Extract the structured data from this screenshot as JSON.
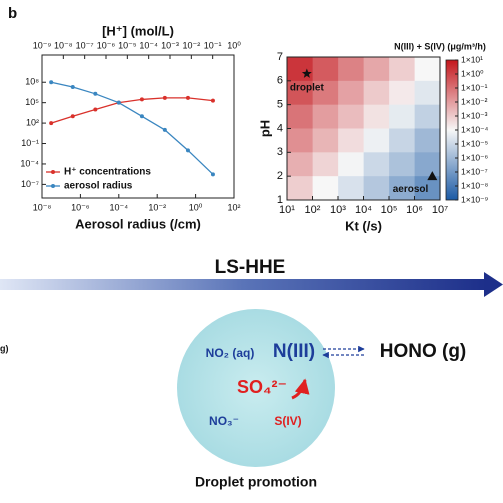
{
  "panel_label": "b",
  "chart_data": [
    {
      "type": "line",
      "xlabel": "Aerosol radius (/cm)",
      "x2label": "[H⁺] (mol/L)",
      "x": [
        3e-08,
        4e-07,
        6e-06,
        0.0001,
        0.0016,
        0.025,
        0.4,
        8
      ],
      "xlim": [
        1e-08,
        100
      ],
      "xticks": [
        {
          "value": 1e-08,
          "label": "10⁻⁸"
        },
        {
          "value": 1e-06,
          "label": "10⁻⁶"
        },
        {
          "value": 0.0001,
          "label": "10⁻⁴"
        },
        {
          "value": 0.01,
          "label": "10⁻²"
        },
        {
          "value": 1,
          "label": "10⁰"
        },
        {
          "value": 100,
          "label": "10²"
        }
      ],
      "x2lim": [
        1e-09,
        1
      ],
      "x2ticks": [
        {
          "value": 1e-09,
          "label": "10⁻⁹"
        },
        {
          "value": 1e-08,
          "label": "10⁻⁸"
        },
        {
          "value": 1e-07,
          "label": "10⁻⁷"
        },
        {
          "value": 1e-06,
          "label": "10⁻⁶"
        },
        {
          "value": 1e-05,
          "label": "10⁻⁵"
        },
        {
          "value": 0.0001,
          "label": "10⁻⁴"
        },
        {
          "value": 0.001,
          "label": "10⁻³"
        },
        {
          "value": 0.01,
          "label": "10⁻²"
        },
        {
          "value": 0.1,
          "label": "10⁻¹"
        },
        {
          "value": 1,
          "label": "10⁰"
        }
      ],
      "ylim": [
        1e-09,
        1000000000000.0
      ],
      "yticks": [
        {
          "value": 1e-07,
          "label": "10⁻⁷"
        },
        {
          "value": 0.0001,
          "label": "10⁻⁴"
        },
        {
          "value": 0.1,
          "label": "10⁻¹"
        },
        {
          "value": 100,
          "label": "10²"
        },
        {
          "value": 100000,
          "label": "10⁵"
        },
        {
          "value": 100000000,
          "label": "10⁸"
        }
      ],
      "log_x": true,
      "log_y": true,
      "legend": "lower left",
      "series": [
        {
          "name": "H⁺ concentrations",
          "color": "#d9312b",
          "values": [
            100,
            1000,
            10000,
            100000,
            300000,
            500000,
            500000,
            200000
          ]
        },
        {
          "name": "aerosol radius",
          "color": "#3a86c0",
          "values": [
            100000000,
            20000000,
            2000000,
            100000,
            1000,
            10,
            0.01,
            3e-06
          ]
        }
      ]
    },
    {
      "type": "heatmap",
      "xlabel": "Kt (/s)",
      "ylabel": "pH",
      "x": [
        32,
        320,
        3200,
        32000,
        320000,
        3200000
      ],
      "y": [
        6.5,
        5.5,
        4.5,
        3.5,
        2.5,
        1.5
      ],
      "z": [
        [
          2,
          0.3,
          0.04,
          0.006,
          0.0008,
          0.0001
        ],
        [
          0.4,
          0.06,
          0.008,
          0.001,
          0.0002,
          3e-05
        ],
        [
          0.08,
          0.01,
          0.002,
          0.0003,
          4e-05,
          6e-06
        ],
        [
          0.02,
          0.003,
          0.0004,
          6e-05,
          8e-06,
          1e-06
        ],
        [
          0.004,
          0.0006,
          8e-05,
          1e-05,
          2e-06,
          3e-07
        ],
        [
          0.0008,
          0.0001,
          2e-05,
          3e-06,
          4e-07,
          6e-08
        ]
      ],
      "xlim": [
        10,
        10000000
      ],
      "xticks": [
        {
          "value": 10,
          "label": "10¹"
        },
        {
          "value": 100,
          "label": "10²"
        },
        {
          "value": 1000,
          "label": "10³"
        },
        {
          "value": 10000,
          "label": "10⁴"
        },
        {
          "value": 100000,
          "label": "10⁵"
        },
        {
          "value": 1000000,
          "label": "10⁶"
        },
        {
          "value": 10000000,
          "label": "10⁷"
        }
      ],
      "ylim": [
        1,
        7
      ],
      "yticks": [
        1,
        2,
        3,
        4,
        5,
        6,
        7
      ],
      "log_x": true,
      "colorbar": {
        "title": "N(III) + S(IV) (μg/m³/h)",
        "lim": [
          1e-09,
          10
        ],
        "log": true,
        "colors": [
          "#1b5aa5",
          "#f7f7f7",
          "#c4161c"
        ],
        "ticks": [
          {
            "value": 10,
            "label": "1×10¹"
          },
          {
            "value": 1,
            "label": "1×10⁰"
          },
          {
            "value": 0.1,
            "label": "1×10⁻¹"
          },
          {
            "value": 0.01,
            "label": "1×10⁻²"
          },
          {
            "value": 0.001,
            "label": "1×10⁻³"
          },
          {
            "value": 0.0001,
            "label": "1×10⁻⁴"
          },
          {
            "value": 1e-05,
            "label": "1×10⁻⁵"
          },
          {
            "value": 1e-06,
            "label": "1×10⁻⁶"
          },
          {
            "value": 1e-07,
            "label": "1×10⁻⁷"
          },
          {
            "value": 1e-08,
            "label": "1×10⁻⁸"
          },
          {
            "value": 1e-09,
            "label": "1×10⁻⁹"
          }
        ]
      },
      "annotations": [
        {
          "text": "droplet",
          "x": 60,
          "y": 6.3,
          "marker": "star"
        },
        {
          "text": "aerosol",
          "x": 5000000,
          "y": 2,
          "marker": "triangle"
        }
      ]
    }
  ],
  "diagram": {
    "arrow_label": "LS-HHE",
    "fragment": "g)",
    "no2": "NO₂ (aq)",
    "n3": "N(III)",
    "so4": "SO₄²⁻",
    "no3": "NO₃⁻",
    "s4": "S(IV)",
    "hono": "HONO (g)",
    "caption": "Droplet promotion"
  }
}
